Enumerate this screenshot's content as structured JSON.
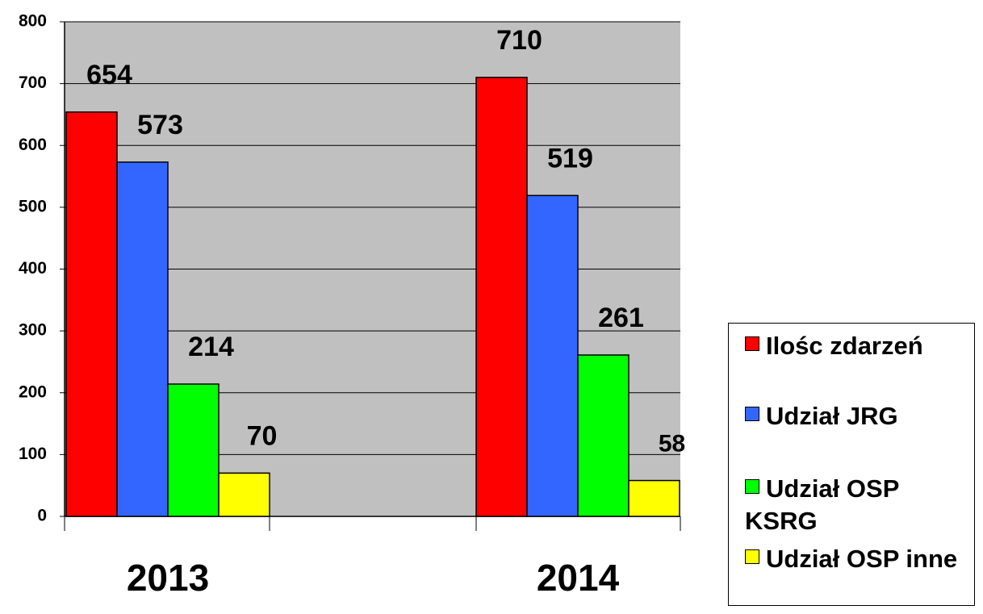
{
  "chart_data": {
    "type": "bar",
    "categories": [
      "2013",
      "2014"
    ],
    "series": [
      {
        "name": "Ilośc zdarzeń",
        "color": "#ff0000",
        "values": [
          654,
          710
        ]
      },
      {
        "name": "Udział JRG",
        "color": "#3366ff",
        "values": [
          573,
          519
        ]
      },
      {
        "name": "Udział OSP KSRG",
        "color": "#00ff00",
        "values": [
          214,
          261
        ]
      },
      {
        "name": "Udział OSP inne",
        "color": "#ffff00",
        "values": [
          70,
          58
        ]
      }
    ],
    "ylim": [
      0,
      800
    ],
    "yticks": [
      0,
      100,
      200,
      300,
      400,
      500,
      600,
      700,
      800
    ],
    "grid": true,
    "legend": "right"
  }
}
